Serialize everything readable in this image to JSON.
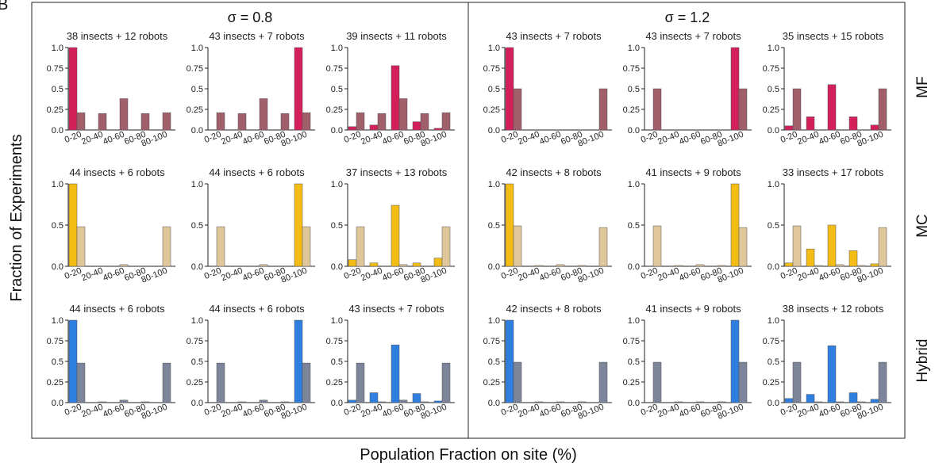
{
  "figure": {
    "panel_letter": "B",
    "ylabel": "Fraction of Experiments",
    "xlabel": "Population Fraction on site (%)",
    "sigma_labels": [
      "σ = 0.8",
      "σ = 1.2"
    ],
    "row_labels": [
      "MF",
      "MC",
      "Hybrid"
    ]
  },
  "colors": {
    "MF": {
      "primary": "#d4205a",
      "secondary": "#a05f69"
    },
    "MC": {
      "primary": "#f3bd15",
      "secondary": "#dfc79b"
    },
    "Hybrid": {
      "primary": "#2f7fe0",
      "secondary": "#7c859a"
    }
  },
  "chart_data": [
    {
      "type": "bar",
      "row": "MF",
      "sigma": "0.8",
      "title": "38 insects + 12 robots",
      "categories": [
        "0-20",
        "20-40",
        "40-60",
        "60-80",
        "80-100"
      ],
      "yticks": [
        "0.0",
        "0.25",
        "0.5",
        "0.75",
        "1.0"
      ],
      "ylim": [
        0,
        1
      ],
      "series": [
        {
          "values": [
            1.0,
            0,
            0,
            0,
            0
          ]
        },
        {
          "values": [
            0.21,
            0.2,
            0.38,
            0.2,
            0.21
          ]
        }
      ]
    },
    {
      "type": "bar",
      "row": "MF",
      "sigma": "0.8",
      "title": "43 insects + 7 robots",
      "categories": [
        "0-20",
        "20-40",
        "40-60",
        "60-80",
        "80-100"
      ],
      "yticks": [
        "0.0",
        "0.25",
        "0.5",
        "0.75",
        "1.0"
      ],
      "ylim": [
        0,
        1
      ],
      "series": [
        {
          "values": [
            0,
            0,
            0,
            0,
            1.0
          ]
        },
        {
          "values": [
            0.21,
            0.2,
            0.38,
            0.2,
            0.21
          ]
        }
      ]
    },
    {
      "type": "bar",
      "row": "MF",
      "sigma": "0.8",
      "title": "39 insects + 11 robots",
      "categories": [
        "0-20",
        "20-40",
        "40-60",
        "60-80",
        "80-100"
      ],
      "yticks": [
        "0.0",
        "0.25",
        "0.5",
        "0.75",
        "1.0"
      ],
      "ylim": [
        0,
        1
      ],
      "series": [
        {
          "values": [
            0.04,
            0.06,
            0.78,
            0.1,
            0.02
          ]
        },
        {
          "values": [
            0.21,
            0.2,
            0.38,
            0.2,
            0.21
          ]
        }
      ]
    },
    {
      "type": "bar",
      "row": "MF",
      "sigma": "1.2",
      "title": "43 insects + 7 robots",
      "categories": [
        "0-20",
        "20-40",
        "40-60",
        "60-80",
        "80-100"
      ],
      "yticks": [
        "0.0",
        "0.25",
        "0.5",
        "0.75",
        "1.0"
      ],
      "ylim": [
        0,
        1
      ],
      "series": [
        {
          "values": [
            1.0,
            0,
            0,
            0,
            0
          ]
        },
        {
          "values": [
            0.5,
            0,
            0,
            0,
            0.5
          ]
        }
      ]
    },
    {
      "type": "bar",
      "row": "MF",
      "sigma": "1.2",
      "title": "43 insects + 7 robots",
      "categories": [
        "0-20",
        "20-40",
        "40-60",
        "60-80",
        "80-100"
      ],
      "yticks": [
        "0.0",
        "0.25",
        "0.5",
        "0.75",
        "1.0"
      ],
      "ylim": [
        0,
        1
      ],
      "series": [
        {
          "values": [
            0,
            0,
            0,
            0,
            1.0
          ]
        },
        {
          "values": [
            0.5,
            0,
            0,
            0,
            0.5
          ]
        }
      ]
    },
    {
      "type": "bar",
      "row": "MF",
      "sigma": "1.2",
      "title": "35 insects + 15 robots",
      "categories": [
        "0-20",
        "20-40",
        "40-60",
        "60-80",
        "80-100"
      ],
      "yticks": [
        "0.0",
        "0.25",
        "0.5",
        "0.75",
        "1.0"
      ],
      "ylim": [
        0,
        1
      ],
      "series": [
        {
          "values": [
            0.05,
            0.16,
            0.55,
            0.16,
            0.06
          ]
        },
        {
          "values": [
            0.5,
            0,
            0,
            0,
            0.5
          ]
        }
      ]
    },
    {
      "type": "bar",
      "row": "MC",
      "sigma": "0.8",
      "title": "44 insects + 6 robots",
      "categories": [
        "0-20",
        "20-40",
        "40-60",
        "60-80",
        "80-100"
      ],
      "yticks": [
        "0.0",
        "0.5",
        "1.0"
      ],
      "ylim": [
        0,
        1
      ],
      "series": [
        {
          "values": [
            1.0,
            0,
            0,
            0,
            0
          ]
        },
        {
          "values": [
            0.48,
            0,
            0.02,
            0,
            0.48
          ]
        }
      ]
    },
    {
      "type": "bar",
      "row": "MC",
      "sigma": "0.8",
      "title": "44 insects + 6 robots",
      "categories": [
        "0-20",
        "20-40",
        "40-60",
        "60-80",
        "80-100"
      ],
      "yticks": [
        "0.0",
        "0.5",
        "1.0"
      ],
      "ylim": [
        0,
        1
      ],
      "series": [
        {
          "values": [
            0,
            0,
            0,
            0,
            1.0
          ]
        },
        {
          "values": [
            0.48,
            0,
            0.02,
            0,
            0.48
          ]
        }
      ]
    },
    {
      "type": "bar",
      "row": "MC",
      "sigma": "0.8",
      "title": "37 insects + 13 robots",
      "categories": [
        "0-20",
        "20-40",
        "40-60",
        "60-80",
        "80-100"
      ],
      "yticks": [
        "0.0",
        "0.5",
        "1.0"
      ],
      "ylim": [
        0,
        1
      ],
      "series": [
        {
          "values": [
            0.08,
            0.04,
            0.74,
            0.04,
            0.1
          ]
        },
        {
          "values": [
            0.48,
            0,
            0.02,
            0,
            0.48
          ]
        }
      ]
    },
    {
      "type": "bar",
      "row": "MC",
      "sigma": "1.2",
      "title": "42 insects + 8 robots",
      "categories": [
        "0-20",
        "20-40",
        "40-60",
        "60-80",
        "80-100"
      ],
      "yticks": [
        "0.0",
        "0.5",
        "1.0"
      ],
      "ylim": [
        0,
        1
      ],
      "series": [
        {
          "values": [
            1.0,
            0,
            0,
            0,
            0
          ]
        },
        {
          "values": [
            0.49,
            0.01,
            0.02,
            0.01,
            0.47
          ]
        }
      ]
    },
    {
      "type": "bar",
      "row": "MC",
      "sigma": "1.2",
      "title": "41 insects + 9 robots",
      "categories": [
        "0-20",
        "20-40",
        "40-60",
        "60-80",
        "80-100"
      ],
      "yticks": [
        "0.0",
        "0.5",
        "1.0"
      ],
      "ylim": [
        0,
        1
      ],
      "series": [
        {
          "values": [
            0,
            0,
            0,
            0,
            1.0
          ]
        },
        {
          "values": [
            0.49,
            0.01,
            0.02,
            0.01,
            0.47
          ]
        }
      ]
    },
    {
      "type": "bar",
      "row": "MC",
      "sigma": "1.2",
      "title": "33 insects + 17 robots",
      "categories": [
        "0-20",
        "20-40",
        "40-60",
        "60-80",
        "80-100"
      ],
      "yticks": [
        "0.0",
        "0.5",
        "1.0"
      ],
      "ylim": [
        0,
        1
      ],
      "series": [
        {
          "values": [
            0.04,
            0.21,
            0.5,
            0.19,
            0.03
          ]
        },
        {
          "values": [
            0.49,
            0.01,
            0.02,
            0.01,
            0.47
          ]
        }
      ]
    },
    {
      "type": "bar",
      "row": "Hybrid",
      "sigma": "0.8",
      "title": "44 insects + 6 robots",
      "categories": [
        "0-20",
        "20-40",
        "40-60",
        "60-80",
        "80-100"
      ],
      "yticks": [
        "0.0",
        "0.25",
        "0.5",
        "0.75",
        "1.0"
      ],
      "ylim": [
        0,
        1
      ],
      "series": [
        {
          "values": [
            1.0,
            0,
            0,
            0,
            0
          ]
        },
        {
          "values": [
            0.48,
            0.01,
            0.03,
            0.01,
            0.48
          ]
        }
      ]
    },
    {
      "type": "bar",
      "row": "Hybrid",
      "sigma": "0.8",
      "title": "44 insects + 6 robots",
      "categories": [
        "0-20",
        "20-40",
        "40-60",
        "60-80",
        "80-100"
      ],
      "yticks": [
        "0.0",
        "0.25",
        "0.5",
        "0.75",
        "1.0"
      ],
      "ylim": [
        0,
        1
      ],
      "series": [
        {
          "values": [
            0,
            0,
            0,
            0,
            1.0
          ]
        },
        {
          "values": [
            0.48,
            0.01,
            0.03,
            0.01,
            0.48
          ]
        }
      ]
    },
    {
      "type": "bar",
      "row": "Hybrid",
      "sigma": "0.8",
      "title": "43 insects + 7 robots",
      "categories": [
        "0-20",
        "20-40",
        "40-60",
        "60-80",
        "80-100"
      ],
      "yticks": [
        "0.0",
        "0.25",
        "0.5",
        "0.75",
        "1.0"
      ],
      "ylim": [
        0,
        1
      ],
      "series": [
        {
          "values": [
            0.03,
            0.12,
            0.7,
            0.11,
            0.02
          ]
        },
        {
          "values": [
            0.48,
            0.01,
            0.03,
            0.01,
            0.48
          ]
        }
      ]
    },
    {
      "type": "bar",
      "row": "Hybrid",
      "sigma": "1.2",
      "title": "42 insects + 8 robots",
      "categories": [
        "0-20",
        "20-40",
        "40-60",
        "60-80",
        "80-100"
      ],
      "yticks": [
        "0.0",
        "0.25",
        "0.5",
        "0.75",
        "1.0"
      ],
      "ylim": [
        0,
        1
      ],
      "series": [
        {
          "values": [
            1.0,
            0,
            0,
            0,
            0
          ]
        },
        {
          "values": [
            0.49,
            0.01,
            0.01,
            0.01,
            0.49
          ]
        }
      ]
    },
    {
      "type": "bar",
      "row": "Hybrid",
      "sigma": "1.2",
      "title": "41 insects + 9 robots",
      "categories": [
        "0-20",
        "20-40",
        "40-60",
        "60-80",
        "80-100"
      ],
      "yticks": [
        "0.0",
        "0.25",
        "0.5",
        "0.75",
        "1.0"
      ],
      "ylim": [
        0,
        1
      ],
      "series": [
        {
          "values": [
            0,
            0,
            0,
            0,
            1.0
          ]
        },
        {
          "values": [
            0.49,
            0.01,
            0.01,
            0.01,
            0.49
          ]
        }
      ]
    },
    {
      "type": "bar",
      "row": "Hybrid",
      "sigma": "1.2",
      "title": "38 insects + 12 robots",
      "categories": [
        "0-20",
        "20-40",
        "40-60",
        "60-80",
        "80-100"
      ],
      "yticks": [
        "0.0",
        "0.25",
        "0.5",
        "0.75",
        "1.0"
      ],
      "ylim": [
        0,
        1
      ],
      "series": [
        {
          "values": [
            0.05,
            0.1,
            0.69,
            0.12,
            0.04
          ]
        },
        {
          "values": [
            0.49,
            0.01,
            0.01,
            0.01,
            0.49
          ]
        }
      ]
    }
  ]
}
